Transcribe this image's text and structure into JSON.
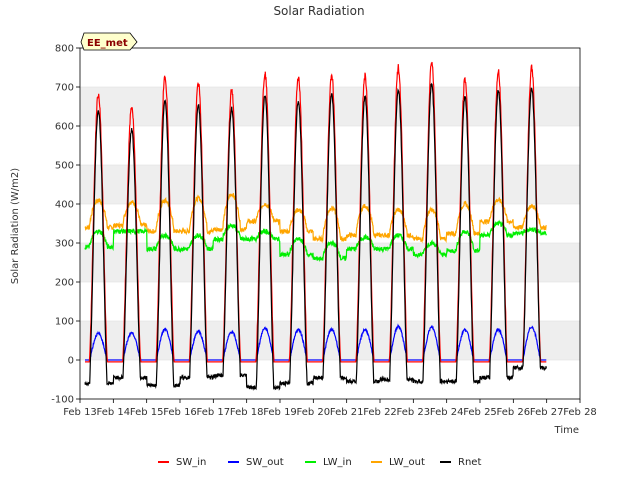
{
  "chart_data": {
    "type": "line",
    "title": "Solar Radiation",
    "xlabel": "Time",
    "ylabel": "Solar Radiation (W/m2)",
    "badge": "EE_met",
    "ylim": [
      -100,
      800
    ],
    "yticks": [
      -100,
      0,
      100,
      200,
      300,
      400,
      500,
      600,
      700,
      800
    ],
    "xlim": [
      13,
      28
    ],
    "xticks": [
      13,
      14,
      15,
      16,
      17,
      18,
      19,
      20,
      21,
      22,
      23,
      24,
      25,
      26,
      27,
      28
    ],
    "xtick_labels": [
      "Feb 13",
      "Feb 14",
      "Feb 15",
      "Feb 16",
      "Feb 17",
      "Feb 18",
      "Feb 19",
      "Feb 20",
      "Feb 21",
      "Feb 22",
      "Feb 23",
      "Feb 24",
      "Feb 25",
      "Feb 26",
      "Feb 27",
      "Feb 28"
    ],
    "grid": "horizontal bands",
    "legend_position": "bottom",
    "days": [
      13,
      14,
      15,
      16,
      17,
      18,
      19,
      20,
      21,
      22,
      23,
      24,
      25,
      26
    ],
    "series": [
      {
        "name": "SW_in",
        "color": "#ff0000",
        "daily_peak": [
          680,
          650,
          725,
          710,
          690,
          735,
          725,
          732,
          728,
          750,
          765,
          720,
          740,
          750
        ],
        "night": -5
      },
      {
        "name": "SW_out",
        "color": "#0000ff",
        "daily_peak": [
          68,
          70,
          78,
          74,
          72,
          82,
          78,
          78,
          78,
          86,
          84,
          78,
          78,
          85
        ],
        "night": 0
      },
      {
        "name": "LW_in",
        "color": "#00ee00",
        "night_level": [
          290,
          330,
          285,
          285,
          310,
          310,
          270,
          260,
          285,
          285,
          270,
          280,
          320,
          325
        ],
        "day_level": [
          330,
          330,
          320,
          320,
          345,
          330,
          310,
          300,
          315,
          320,
          300,
          330,
          350,
          335
        ]
      },
      {
        "name": "LW_out",
        "color": "#ffa500",
        "night_level": [
          340,
          345,
          330,
          330,
          335,
          355,
          330,
          310,
          320,
          320,
          310,
          325,
          355,
          340
        ],
        "day_level": [
          410,
          405,
          410,
          415,
          425,
          400,
          385,
          390,
          395,
          385,
          385,
          400,
          410,
          395
        ]
      },
      {
        "name": "Rnet",
        "color": "#000000",
        "daily_peak": [
          640,
          590,
          665,
          655,
          645,
          680,
          665,
          680,
          675,
          695,
          708,
          675,
          690,
          698
        ],
        "night_level": [
          -60,
          -45,
          -65,
          -45,
          -40,
          -70,
          -60,
          -45,
          -55,
          -50,
          -55,
          -55,
          -45,
          -20
        ]
      }
    ]
  }
}
